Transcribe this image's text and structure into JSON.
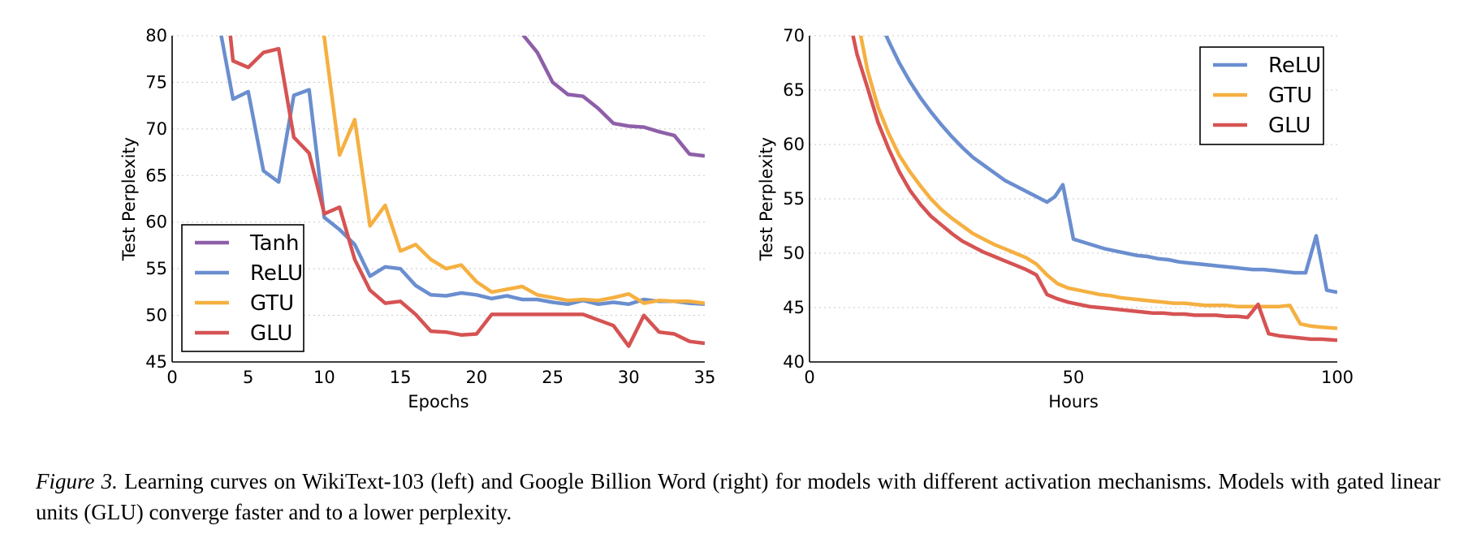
{
  "chart_data": [
    {
      "type": "line",
      "xlabel": "Epochs",
      "ylabel": "Test Perplexity",
      "xlim": [
        0,
        35
      ],
      "ylim": [
        45,
        80
      ],
      "xticks": [
        0,
        5,
        10,
        15,
        20,
        25,
        30,
        35
      ],
      "yticks": [
        45,
        50,
        55,
        60,
        65,
        70,
        75,
        80
      ],
      "grid": "horizontal dotted",
      "legend": "bottom-left",
      "series": [
        {
          "name": "Tanh",
          "color": "#8e5fa8",
          "x": [
            22,
            23,
            24,
            25,
            26,
            27,
            28,
            29,
            30,
            31,
            32,
            33,
            34,
            35
          ],
          "y": [
            82,
            80.2,
            78.2,
            75,
            73.7,
            73.5,
            72.2,
            70.6,
            70.3,
            70.2,
            69.7,
            69.3,
            67.3,
            67.1
          ]
        },
        {
          "name": "ReLU",
          "color": "#6a8ecf",
          "x": [
            3,
            4,
            5,
            6,
            7,
            8,
            9,
            10,
            11,
            12,
            13,
            14,
            15,
            16,
            17,
            18,
            19,
            20,
            21,
            22,
            23,
            24,
            25,
            26,
            27,
            28,
            29,
            30,
            31,
            32,
            33,
            34,
            35
          ],
          "y": [
            82,
            73.2,
            74,
            65.5,
            64.3,
            73.6,
            74.2,
            60.5,
            59.2,
            57.6,
            54.2,
            55.2,
            55,
            53.2,
            52.2,
            52.1,
            52.4,
            52.2,
            51.8,
            52.1,
            51.7,
            51.7,
            51.4,
            51.2,
            51.6,
            51.2,
            51.4,
            51.2,
            51.7,
            51.5,
            51.5,
            51.3,
            51.2
          ]
        },
        {
          "name": "GTU",
          "color": "#f5b041",
          "x": [
            9.6,
            10,
            11,
            12,
            13,
            14,
            15,
            16,
            17,
            18,
            19,
            20,
            21,
            22,
            23,
            24,
            25,
            26,
            27,
            28,
            29,
            30,
            31,
            32,
            33,
            34,
            35
          ],
          "y": [
            82,
            79.8,
            67.2,
            71,
            59.6,
            61.8,
            56.9,
            57.6,
            56,
            55,
            55.4,
            53.6,
            52.5,
            52.8,
            53.1,
            52.2,
            51.9,
            51.6,
            51.7,
            51.6,
            51.9,
            52.3,
            51.3,
            51.6,
            51.5,
            51.5,
            51.3
          ]
        },
        {
          "name": "GLU",
          "color": "#d65353",
          "x": [
            3.7,
            4,
            5,
            6,
            7,
            8,
            9,
            10,
            11,
            12,
            13,
            14,
            15,
            16,
            17,
            18,
            19,
            20,
            21,
            22,
            23,
            24,
            25,
            26,
            27,
            28,
            29,
            30,
            31,
            32,
            33,
            34,
            35
          ],
          "y": [
            82,
            77.3,
            76.6,
            78.2,
            78.6,
            69.1,
            67.4,
            60.9,
            61.6,
            56,
            52.7,
            51.3,
            51.5,
            50.1,
            48.3,
            48.2,
            47.9,
            48,
            50.1,
            50.1,
            50.1,
            50.1,
            50.1,
            50.1,
            50.1,
            49.5,
            48.9,
            46.7,
            50,
            48.2,
            48,
            47.2,
            47
          ]
        }
      ]
    },
    {
      "type": "line",
      "xlabel": "Hours",
      "ylabel": "Test Perplexity",
      "xlim": [
        0,
        100
      ],
      "ylim": [
        40,
        70
      ],
      "xticks": [
        0,
        50,
        100
      ],
      "yticks": [
        40,
        45,
        50,
        55,
        60,
        65,
        70
      ],
      "grid": "horizontal dotted",
      "legend": "top-right",
      "series": [
        {
          "name": "ReLU",
          "color": "#6a8ecf",
          "x": [
            13.6,
            15,
            17,
            19,
            21,
            23,
            25,
            27,
            29,
            31,
            33,
            35,
            37,
            39,
            41,
            43,
            45,
            46.5,
            48,
            50,
            52,
            54,
            56,
            58,
            60,
            62,
            64,
            66,
            68,
            70,
            72,
            74,
            76,
            78,
            80,
            82,
            84,
            86,
            88,
            90,
            92,
            94,
            96,
            98,
            100
          ],
          "y": [
            71,
            69.5,
            67.5,
            65.8,
            64.3,
            63,
            61.8,
            60.7,
            59.7,
            58.8,
            58.1,
            57.4,
            56.7,
            56.2,
            55.7,
            55.2,
            54.7,
            55.2,
            56.3,
            51.3,
            51,
            50.7,
            50.4,
            50.2,
            50,
            49.8,
            49.7,
            49.5,
            49.4,
            49.2,
            49.1,
            49,
            48.9,
            48.8,
            48.7,
            48.6,
            48.5,
            48.5,
            48.4,
            48.3,
            48.2,
            48.2,
            51.6,
            46.6,
            46.4
          ]
        },
        {
          "name": "GTU",
          "color": "#f5b041",
          "x": [
            9.3,
            11,
            13,
            15,
            17,
            19,
            21,
            23,
            25,
            27,
            29,
            31,
            33,
            35,
            37,
            39,
            41,
            43,
            45,
            47,
            49,
            51,
            53,
            55,
            57,
            59,
            61,
            63,
            65,
            67,
            69,
            71,
            73,
            75,
            77,
            79,
            81,
            83,
            85,
            87,
            89,
            91,
            93,
            95,
            97,
            100
          ],
          "y": [
            71,
            66.8,
            63.4,
            61,
            59,
            57.5,
            56.2,
            55,
            54,
            53.2,
            52.5,
            51.8,
            51.3,
            50.8,
            50.4,
            50,
            49.6,
            49,
            48,
            47.2,
            46.8,
            46.6,
            46.4,
            46.2,
            46.1,
            45.9,
            45.8,
            45.7,
            45.6,
            45.5,
            45.4,
            45.4,
            45.3,
            45.2,
            45.2,
            45.2,
            45.1,
            45.1,
            45.1,
            45.1,
            45.1,
            45.2,
            43.5,
            43.3,
            43.2,
            43.1
          ]
        },
        {
          "name": "GLU",
          "color": "#d65353",
          "x": [
            7.8,
            9,
            11,
            13,
            15,
            17,
            19,
            21,
            23,
            25,
            27,
            29,
            31,
            33,
            35,
            37,
            39,
            41,
            43,
            45,
            47,
            49,
            51,
            53,
            55,
            57,
            59,
            61,
            63,
            65,
            67,
            69,
            71,
            73,
            75,
            77,
            79,
            81,
            83,
            85,
            87,
            89,
            91,
            93,
            95,
            97,
            100
          ],
          "y": [
            71,
            68.3,
            65.2,
            62,
            59.6,
            57.5,
            55.8,
            54.5,
            53.4,
            52.6,
            51.8,
            51.1,
            50.6,
            50.1,
            49.7,
            49.3,
            48.9,
            48.5,
            48,
            46.2,
            45.8,
            45.5,
            45.3,
            45.1,
            45,
            44.9,
            44.8,
            44.7,
            44.6,
            44.5,
            44.5,
            44.4,
            44.4,
            44.3,
            44.3,
            44.3,
            44.2,
            44.2,
            44.1,
            45.3,
            42.6,
            42.4,
            42.3,
            42.2,
            42.1,
            42.1,
            42
          ]
        }
      ]
    }
  ],
  "caption": {
    "label": "Figure 3.",
    "text": " Learning curves on WikiText-103 (left) and Google Billion Word (right) for models with different activation mechanisms. Models with gated linear units (GLU) converge faster and to a lower perplexity."
  }
}
